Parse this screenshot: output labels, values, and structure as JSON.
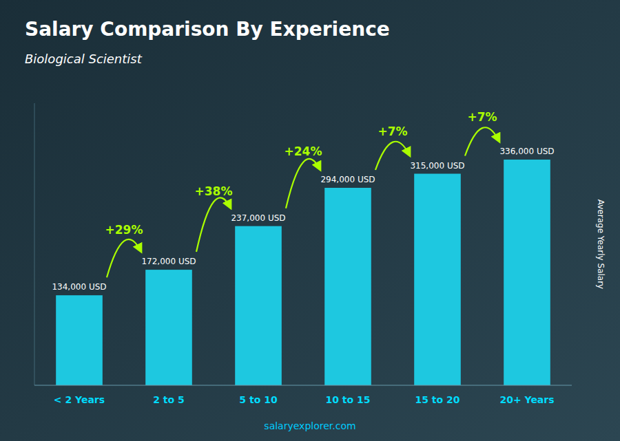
{
  "chart_data": {
    "type": "bar",
    "title": "Salary Comparison By Experience",
    "subtitle": "Biological Scientist",
    "ylabel": "Average Yearly Salary",
    "footer": "salaryexplorer.com",
    "categories": [
      "< 2 Years",
      "2 to 5",
      "5 to 10",
      "10 to 15",
      "15 to 20",
      "20+ Years"
    ],
    "values": [
      134000,
      172000,
      237000,
      294000,
      315000,
      336000
    ],
    "value_labels": [
      "134,000 USD",
      "172,000 USD",
      "237,000 USD",
      "294,000 USD",
      "315,000 USD",
      "336,000 USD"
    ],
    "data_labels": true,
    "annotations": [
      "+29%",
      "+38%",
      "+24%",
      "+7%",
      "+7%"
    ],
    "color": "#1ec8e0",
    "ylim": [
      0,
      420000
    ],
    "grid": false,
    "tick_labels": "x"
  }
}
